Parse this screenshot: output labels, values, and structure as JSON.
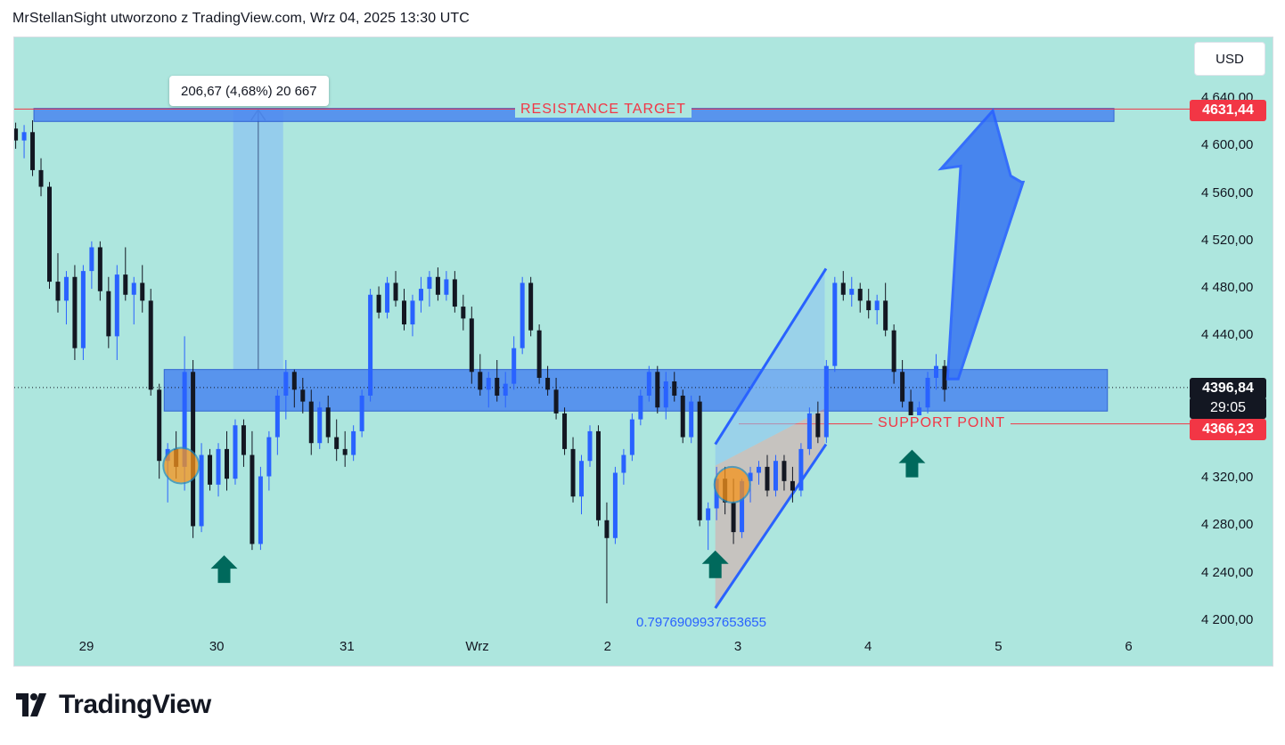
{
  "header": {
    "title": "MrStellanSight utworzono z TradingView.com, Wrz 04, 2025 13:30 UTC"
  },
  "currency_button": "USD",
  "brand": {
    "name": "TradingView"
  },
  "annotations": {
    "measure_label": "206,67 (4,68%) 20 667",
    "resistance_label": "RESISTANCE  TARGET",
    "support_label": "SUPPORT  POINT",
    "fib_label": "0.7976909937653655"
  },
  "price_tags": {
    "resistance": "4631,44",
    "current": "4396,84",
    "countdown": "29:05",
    "support": "4366,23"
  },
  "colors": {
    "background": "#ade6de",
    "up_candle": "#2962ff",
    "down_candle": "#131722",
    "zone": "#4a86f0",
    "red_line": "#f23645",
    "arrow_up": "#00695c",
    "orange_marker": "#f7931a"
  },
  "chart_data": {
    "type": "candlestick",
    "instrument_currency": "USD",
    "y_axis": {
      "ticks": [
        "4 640,00",
        "4 600,00",
        "4 560,00",
        "4 520,00",
        "4 480,00",
        "4 440,00",
        "4 400,00",
        "4 360,00",
        "4 320,00",
        "4 280,00",
        "4 240,00",
        "4 200,00"
      ],
      "tick_values": [
        4640,
        4600,
        4560,
        4520,
        4480,
        4440,
        4400,
        4360,
        4320,
        4280,
        4240,
        4200
      ],
      "ylim": [
        4190,
        4650
      ]
    },
    "x_axis": {
      "ticks": [
        "29",
        "30",
        "31",
        "Wrz",
        "2",
        "3",
        "4",
        "5",
        "6"
      ],
      "tick_days": [
        0,
        1,
        2,
        3,
        4,
        5,
        6,
        7,
        8
      ]
    },
    "resistance_target": 4631.44,
    "support_point": 4366.23,
    "current_price": 4396.84,
    "measure": {
      "change": 206.67,
      "percent": 4.68
    },
    "zones": [
      {
        "name": "resistance-zone",
        "from_day": -0.41,
        "to_day": 7.88,
        "low": 4621,
        "high": 4632
      },
      {
        "name": "support-zone",
        "from_day": 0.59,
        "to_day": 7.83,
        "low": 4377,
        "high": 4412
      }
    ],
    "channel": {
      "start_day": 4.82,
      "end_day": 5.66,
      "lower_start": 4211,
      "lower_end": 4349,
      "upper_start": 4349,
      "upper_end": 4497
    },
    "projection": {
      "from_day": 6.63,
      "from_price": 4404,
      "to_day": 6.95,
      "to_price": 4630
    },
    "markers_up_arrows": [
      {
        "day": 1.05,
        "price": 4263
      },
      {
        "day": 4.82,
        "price": 4267
      },
      {
        "day": 6.33,
        "price": 4352
      }
    ],
    "orange_circles": [
      {
        "day": 0.72,
        "price": 4331
      },
      {
        "day": 4.95,
        "price": 4315
      }
    ],
    "candles": [
      [
        4615,
        4620,
        4598,
        4605
      ],
      [
        4605,
        4618,
        4590,
        4612
      ],
      [
        4612,
        4622,
        4575,
        4580
      ],
      [
        4580,
        4590,
        4558,
        4566
      ],
      [
        4566,
        4570,
        4480,
        4486
      ],
      [
        4486,
        4510,
        4460,
        4470
      ],
      [
        4470,
        4495,
        4450,
        4490
      ],
      [
        4490,
        4500,
        4420,
        4430
      ],
      [
        4430,
        4500,
        4420,
        4495
      ],
      [
        4495,
        4520,
        4480,
        4515
      ],
      [
        4515,
        4520,
        4470,
        4478
      ],
      [
        4478,
        4490,
        4430,
        4440
      ],
      [
        4440,
        4500,
        4420,
        4492
      ],
      [
        4492,
        4515,
        4470,
        4475
      ],
      [
        4475,
        4490,
        4450,
        4485
      ],
      [
        4485,
        4500,
        4460,
        4470
      ],
      [
        4470,
        4480,
        4390,
        4395
      ],
      [
        4395,
        4400,
        4320,
        4335
      ],
      [
        4335,
        4350,
        4300,
        4345
      ],
      [
        4345,
        4360,
        4320,
        4330
      ],
      [
        4330,
        4440,
        4310,
        4410
      ],
      [
        4410,
        4420,
        4270,
        4280
      ],
      [
        4280,
        4350,
        4275,
        4340
      ],
      [
        4340,
        4345,
        4310,
        4315
      ],
      [
        4315,
        4350,
        4305,
        4345
      ],
      [
        4345,
        4360,
        4310,
        4320
      ],
      [
        4320,
        4370,
        4315,
        4365
      ],
      [
        4365,
        4370,
        4330,
        4340
      ],
      [
        4340,
        4360,
        4260,
        4265
      ],
      [
        4265,
        4330,
        4260,
        4322
      ],
      [
        4322,
        4360,
        4310,
        4355
      ],
      [
        4355,
        4395,
        4340,
        4390
      ],
      [
        4390,
        4420,
        4370,
        4410
      ],
      [
        4410,
        4412,
        4380,
        4395
      ],
      [
        4395,
        4405,
        4375,
        4385
      ],
      [
        4385,
        4395,
        4340,
        4350
      ],
      [
        4350,
        4385,
        4345,
        4380
      ],
      [
        4380,
        4390,
        4350,
        4355
      ],
      [
        4355,
        4370,
        4335,
        4345
      ],
      [
        4345,
        4360,
        4330,
        4340
      ],
      [
        4340,
        4365,
        4335,
        4360
      ],
      [
        4360,
        4395,
        4355,
        4390
      ],
      [
        4390,
        4480,
        4385,
        4475
      ],
      [
        4475,
        4482,
        4455,
        4460
      ],
      [
        4460,
        4490,
        4455,
        4485
      ],
      [
        4485,
        4495,
        4465,
        4470
      ],
      [
        4470,
        4480,
        4445,
        4450
      ],
      [
        4450,
        4475,
        4440,
        4470
      ],
      [
        4470,
        4490,
        4460,
        4480
      ],
      [
        4480,
        4495,
        4465,
        4490
      ],
      [
        4490,
        4498,
        4470,
        4475
      ],
      [
        4475,
        4495,
        4470,
        4488
      ],
      [
        4488,
        4495,
        4460,
        4465
      ],
      [
        4465,
        4475,
        4445,
        4455
      ],
      [
        4455,
        4465,
        4400,
        4410
      ],
      [
        4410,
        4425,
        4390,
        4395
      ],
      [
        4395,
        4410,
        4380,
        4405
      ],
      [
        4405,
        4420,
        4385,
        4390
      ],
      [
        4390,
        4410,
        4380,
        4400
      ],
      [
        4400,
        4440,
        4395,
        4430
      ],
      [
        4430,
        4490,
        4425,
        4485
      ],
      [
        4485,
        4490,
        4440,
        4445
      ],
      [
        4445,
        4450,
        4400,
        4405
      ],
      [
        4405,
        4415,
        4390,
        4395
      ],
      [
        4395,
        4405,
        4370,
        4375
      ],
      [
        4375,
        4380,
        4340,
        4345
      ],
      [
        4345,
        4355,
        4300,
        4305
      ],
      [
        4305,
        4340,
        4290,
        4335
      ],
      [
        4335,
        4365,
        4330,
        4360
      ],
      [
        4360,
        4365,
        4280,
        4285
      ],
      [
        4285,
        4300,
        4215,
        4270
      ],
      [
        4270,
        4330,
        4265,
        4325
      ],
      [
        4325,
        4345,
        4315,
        4340
      ],
      [
        4340,
        4375,
        4335,
        4370
      ],
      [
        4370,
        4395,
        4365,
        4390
      ],
      [
        4390,
        4415,
        4385,
        4410
      ],
      [
        4410,
        4415,
        4375,
        4380
      ],
      [
        4380,
        4410,
        4370,
        4402
      ],
      [
        4402,
        4410,
        4385,
        4390
      ],
      [
        4390,
        4395,
        4350,
        4355
      ],
      [
        4355,
        4390,
        4350,
        4385
      ],
      [
        4385,
        4390,
        4280,
        4285
      ],
      [
        4285,
        4300,
        4260,
        4295
      ],
      [
        4295,
        4330,
        4285,
        4320
      ],
      [
        4320,
        4330,
        4290,
        4300
      ],
      [
        4300,
        4320,
        4265,
        4275
      ],
      [
        4275,
        4320,
        4270,
        4318
      ],
      [
        4318,
        4330,
        4300,
        4325
      ],
      [
        4325,
        4335,
        4315,
        4330
      ],
      [
        4330,
        4340,
        4305,
        4310
      ],
      [
        4310,
        4340,
        4305,
        4335
      ],
      [
        4335,
        4340,
        4310,
        4318
      ],
      [
        4318,
        4330,
        4300,
        4310
      ],
      [
        4310,
        4350,
        4305,
        4345
      ],
      [
        4345,
        4380,
        4340,
        4375
      ],
      [
        4375,
        4385,
        4350,
        4355
      ],
      [
        4355,
        4420,
        4350,
        4415
      ],
      [
        4415,
        4490,
        4410,
        4485
      ],
      [
        4485,
        4495,
        4470,
        4475
      ],
      [
        4475,
        4490,
        4465,
        4480
      ],
      [
        4480,
        4485,
        4460,
        4470
      ],
      [
        4470,
        4480,
        4455,
        4462
      ],
      [
        4462,
        4475,
        4450,
        4470
      ],
      [
        4470,
        4485,
        4440,
        4445
      ],
      [
        4445,
        4450,
        4400,
        4410
      ],
      [
        4410,
        4420,
        4380,
        4385
      ],
      [
        4385,
        4395,
        4360,
        4370
      ],
      [
        4370,
        4385,
        4365,
        4380
      ],
      [
        4380,
        4410,
        4375,
        4405
      ],
      [
        4405,
        4425,
        4395,
        4415
      ],
      [
        4415,
        4420,
        4385,
        4395
      ]
    ]
  }
}
